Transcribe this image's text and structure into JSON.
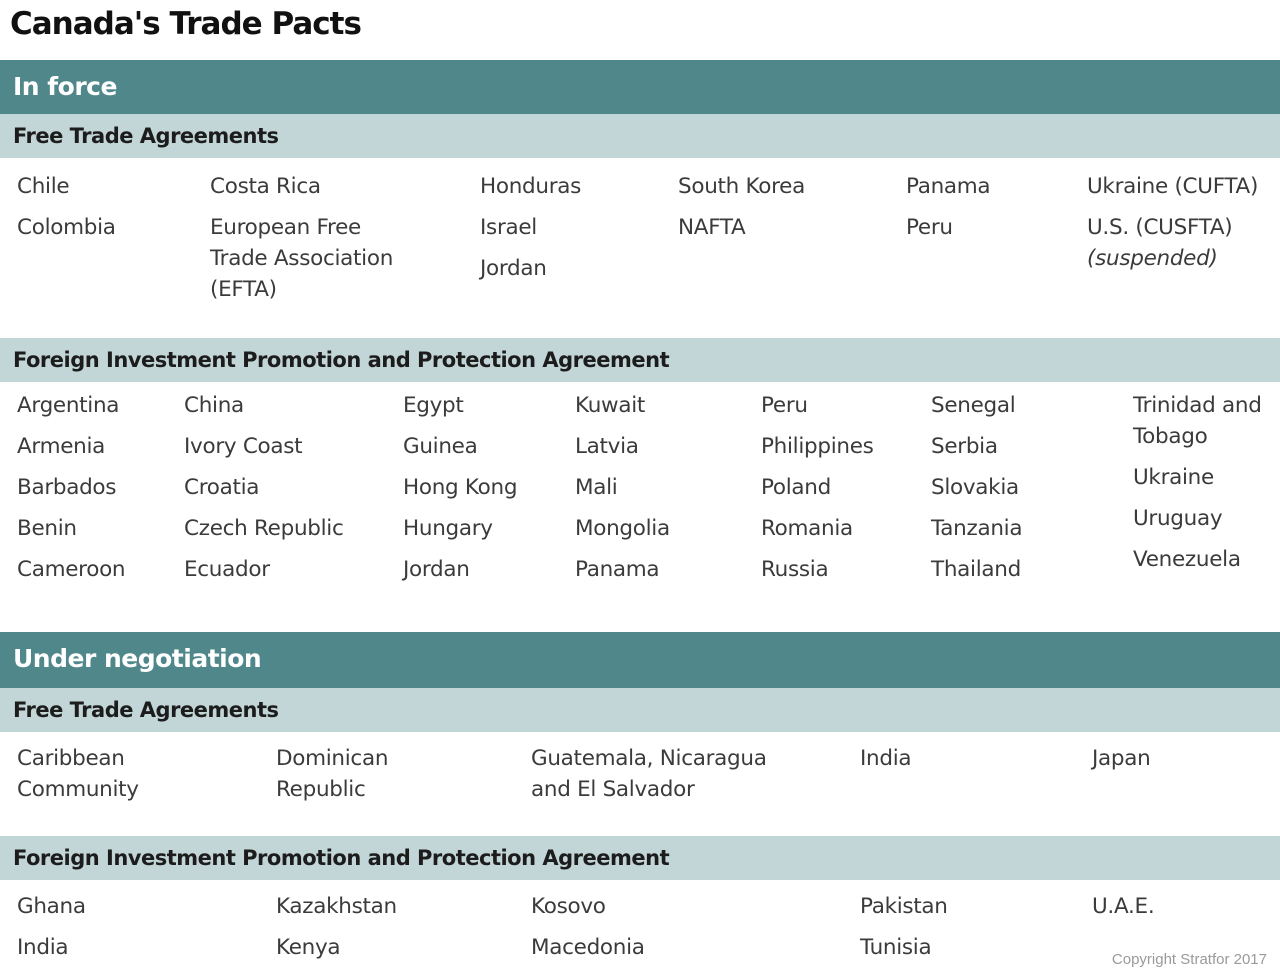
{
  "title": "Canada's Trade Pacts",
  "in_force": {
    "heading": "In force",
    "fta": {
      "heading": "Free Trade Agreements",
      "columns": [
        [
          "Chile",
          "Colombia"
        ],
        [
          "Costa Rica",
          "European Free\nTrade Association\n(EFTA)"
        ],
        [
          "Honduras",
          "Israel",
          "Jordan"
        ],
        [
          "South Korea",
          "NAFTA"
        ],
        [
          "Panama",
          "Peru"
        ],
        [
          "Ukraine (CUFTA)",
          "U.S. (CUSFTA)"
        ]
      ],
      "suspended_note": "(suspended)"
    },
    "fipa": {
      "heading": "Foreign Investment Promotion and Protection Agreement",
      "columns": [
        [
          "Argentina",
          "Armenia",
          "Barbados",
          "Benin",
          "Cameroon"
        ],
        [
          "China",
          "Ivory Coast",
          "Croatia",
          "Czech Republic",
          "Ecuador"
        ],
        [
          "Egypt",
          "Guinea",
          "Hong Kong",
          "Hungary",
          "Jordan"
        ],
        [
          "Kuwait",
          "Latvia",
          "Mali",
          "Mongolia",
          "Panama"
        ],
        [
          "Peru",
          "Philippines",
          "Poland",
          "Romania",
          "Russia"
        ],
        [
          "Senegal",
          "Serbia",
          "Slovakia",
          "Tanzania",
          "Thailand"
        ],
        [
          "Trinidad and\nTobago",
          "Ukraine",
          "Uruguay",
          "Venezuela"
        ]
      ]
    }
  },
  "under_negotiation": {
    "heading": "Under negotiation",
    "fta": {
      "heading": "Free Trade Agreements",
      "columns": [
        [
          "Caribbean\nCommunity"
        ],
        [
          "Dominican\nRepublic"
        ],
        [
          "Guatemala, Nicaragua\nand El Salvador"
        ],
        [
          "India"
        ],
        [
          "Japan"
        ]
      ]
    },
    "fipa": {
      "heading": "Foreign Investment Promotion and Protection Agreement",
      "columns": [
        [
          "Ghana",
          "India"
        ],
        [
          "Kazakhstan",
          "Kenya"
        ],
        [
          "Kosovo",
          "Macedonia"
        ],
        [
          "Pakistan",
          "Tunisia"
        ],
        [
          "U.A.E."
        ]
      ]
    }
  },
  "copyright": "Copyright Stratfor 2017"
}
